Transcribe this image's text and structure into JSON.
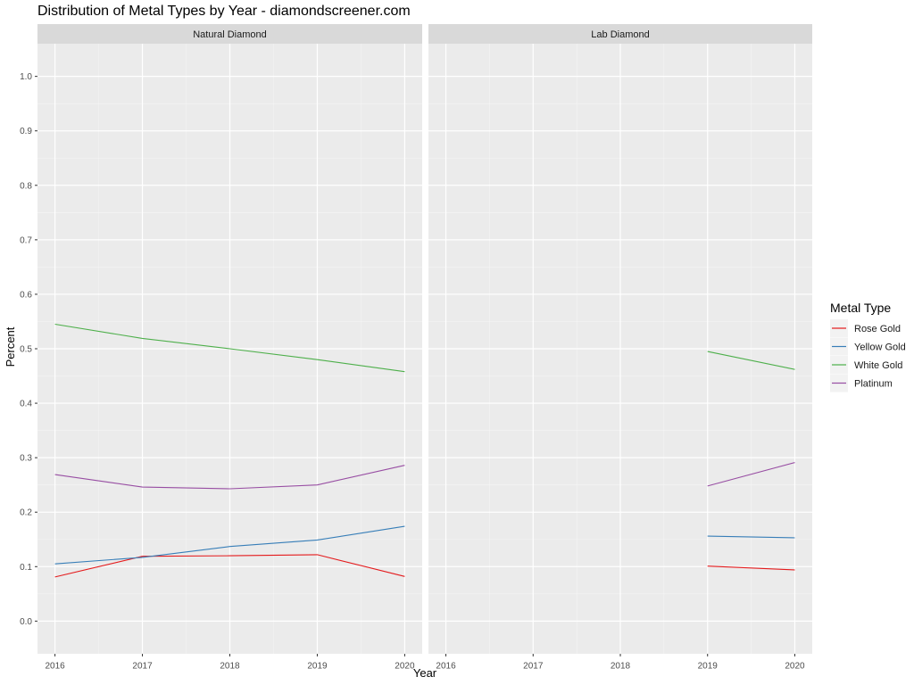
{
  "chart_data": {
    "type": "line",
    "title": "Distribution of Metal Types by Year - diamondscreener.com",
    "xlabel": "Year",
    "ylabel": "Percent",
    "ylim": [
      -0.06,
      1.06
    ],
    "xlim": [
      2015.8,
      2020.2
    ],
    "x_ticks": [
      2016,
      2017,
      2018,
      2019,
      2020
    ],
    "y_ticks": [
      "0.0",
      "0.1",
      "0.2",
      "0.3",
      "0.4",
      "0.5",
      "0.6",
      "0.7",
      "0.8",
      "0.9",
      "1.0"
    ],
    "grid": true,
    "legend_title": "Metal Type",
    "legend_position": "right",
    "colors": {
      "Rose Gold": "#e41a1c",
      "Yellow Gold": "#377eb8",
      "White Gold": "#4daf4a",
      "Platinum": "#984ea3"
    },
    "series_order": [
      "Rose Gold",
      "Yellow Gold",
      "White Gold",
      "Platinum"
    ],
    "facets": [
      {
        "label": "Natural Diamond",
        "series": [
          {
            "name": "Rose Gold",
            "x": [
              2016,
              2017,
              2018,
              2019,
              2020
            ],
            "values": [
              0.081,
              0.119,
              0.12,
              0.122,
              0.082
            ]
          },
          {
            "name": "Yellow Gold",
            "x": [
              2016,
              2017,
              2018,
              2019,
              2020
            ],
            "values": [
              0.105,
              0.117,
              0.137,
              0.149,
              0.174
            ]
          },
          {
            "name": "White Gold",
            "x": [
              2016,
              2017,
              2018,
              2019,
              2020
            ],
            "values": [
              0.545,
              0.519,
              0.5,
              0.48,
              0.458
            ]
          },
          {
            "name": "Platinum",
            "x": [
              2016,
              2017,
              2018,
              2019,
              2020
            ],
            "values": [
              0.269,
              0.246,
              0.243,
              0.25,
              0.286
            ]
          }
        ]
      },
      {
        "label": "Lab Diamond",
        "series": [
          {
            "name": "Rose Gold",
            "x": [
              2019,
              2020
            ],
            "values": [
              0.101,
              0.094
            ]
          },
          {
            "name": "Yellow Gold",
            "x": [
              2019,
              2020
            ],
            "values": [
              0.156,
              0.153
            ]
          },
          {
            "name": "White Gold",
            "x": [
              2019,
              2020
            ],
            "values": [
              0.495,
              0.462
            ]
          },
          {
            "name": "Platinum",
            "x": [
              2019,
              2020
            ],
            "values": [
              0.248,
              0.291
            ]
          }
        ]
      }
    ]
  }
}
